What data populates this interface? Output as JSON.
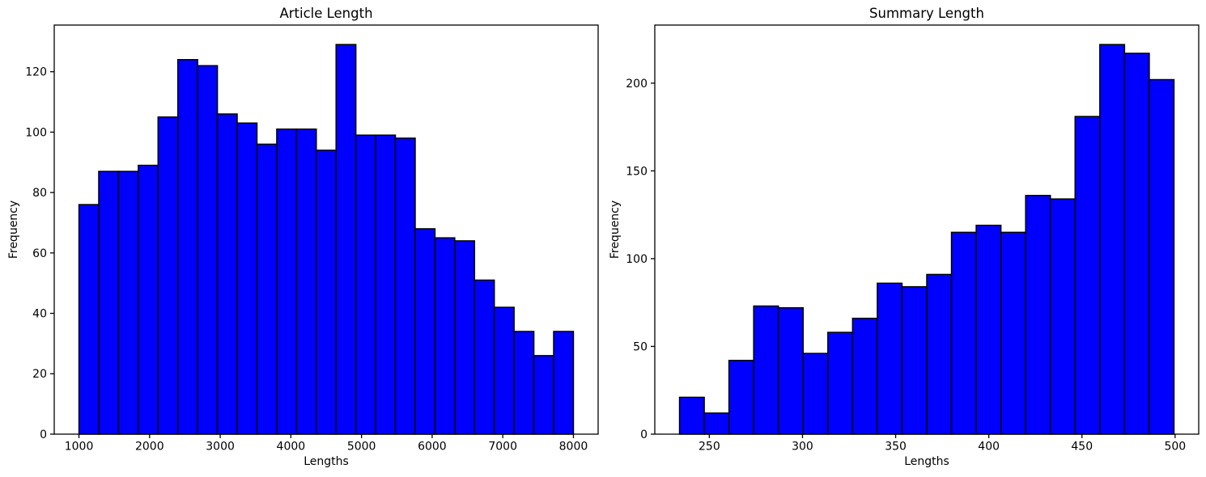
{
  "figure": {
    "background": "#ffffff",
    "text_color": "#000000"
  },
  "chart_data": [
    {
      "type": "bar",
      "subtype": "histogram",
      "title": "Article Length",
      "xlabel": "Lengths",
      "ylabel": "Frequency",
      "bar_color": "#0000ff",
      "bar_edge_color": "#000000",
      "grid": false,
      "legend": false,
      "bin_start": 1000,
      "bin_width": 280,
      "values": [
        76,
        87,
        87,
        89,
        105,
        124,
        122,
        106,
        103,
        96,
        101,
        101,
        94,
        129,
        99,
        99,
        98,
        68,
        65,
        64,
        51,
        42,
        34,
        26,
        34
      ],
      "x_ticks": [
        1000,
        2000,
        3000,
        4000,
        5000,
        6000,
        7000,
        8000
      ],
      "y_ticks": [
        0,
        20,
        40,
        60,
        80,
        100,
        120
      ],
      "xlim": [
        650,
        8350
      ],
      "ylim": [
        0,
        135.45
      ]
    },
    {
      "type": "bar",
      "subtype": "histogram",
      "title": "Summary Length",
      "xlabel": "Lengths",
      "ylabel": "Frequency",
      "bar_color": "#0000ff",
      "bar_edge_color": "#000000",
      "grid": false,
      "legend": false,
      "bin_start": 234,
      "bin_width": 13.27,
      "values": [
        21,
        12,
        42,
        73,
        72,
        46,
        58,
        66,
        86,
        84,
        91,
        115,
        119,
        115,
        136,
        134,
        181,
        222,
        217,
        202
      ],
      "x_ticks": [
        250,
        300,
        350,
        400,
        450,
        500
      ],
      "y_ticks": [
        0,
        50,
        100,
        150,
        200
      ],
      "xlim": [
        220.73,
        512.67
      ],
      "ylim": [
        0,
        233.1
      ]
    }
  ]
}
